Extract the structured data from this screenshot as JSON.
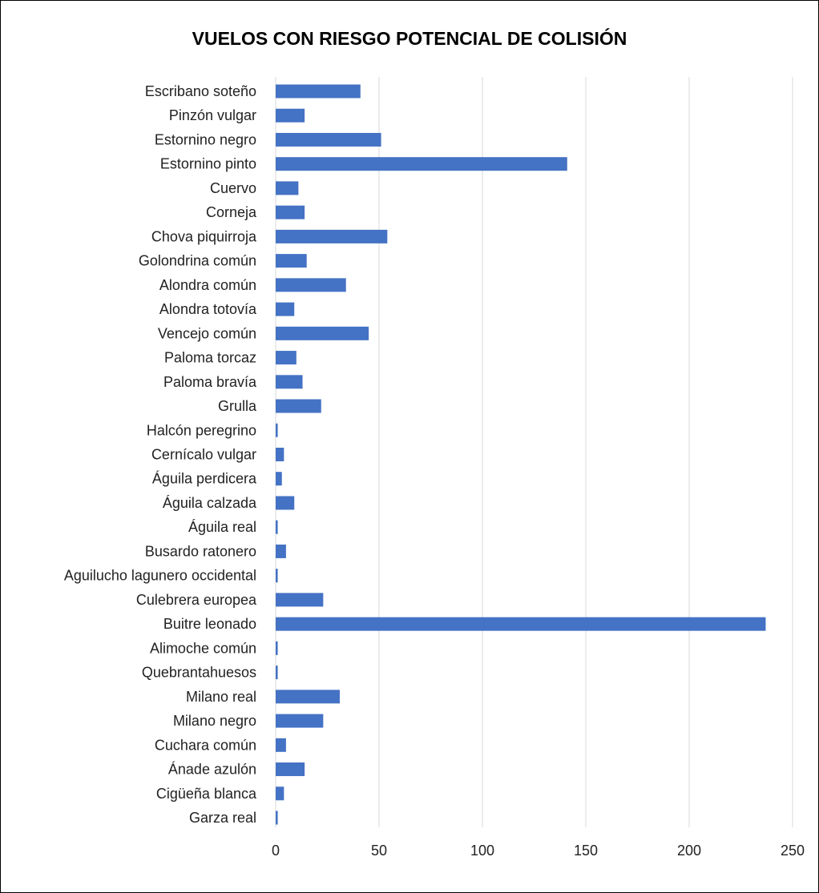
{
  "chart_data": {
    "type": "bar",
    "orientation": "horizontal",
    "title": "VUELOS CON RIESGO POTENCIAL DE COLISIÓN",
    "xlabel": "",
    "ylabel": "",
    "xlim": [
      0,
      250
    ],
    "xticks": [
      0,
      50,
      100,
      150,
      200,
      250
    ],
    "grid": true,
    "legend": "none",
    "bar_color": "#4472C4",
    "categories": [
      "Escribano soteño",
      "Pinzón  vulgar",
      "Estornino negro",
      "Estornino pinto",
      "Cuervo",
      "Corneja",
      "Chova piquirroja",
      "Golondrina común",
      "Alondra común",
      "Alondra totovía",
      "Vencejo común",
      "Paloma torcaz",
      "Paloma bravía",
      "Grulla",
      "Halcón peregrino",
      "Cernícalo vulgar",
      "Águila perdicera",
      "Águila calzada ",
      "Águila real",
      "Busardo ratonero",
      "Aguilucho lagunero occidental",
      "Culebrera europea",
      "Buitre leonado",
      "Alimoche común",
      "Quebrantahuesos",
      "Milano real",
      "Milano negro",
      "Cuchara común",
      "Ánade azulón",
      "Cigüeña blanca",
      "Garza real"
    ],
    "values": [
      41,
      14,
      51,
      141,
      11,
      14,
      54,
      15,
      34,
      9,
      45,
      10,
      13,
      22,
      1,
      4,
      3,
      9,
      1,
      5,
      1,
      23,
      237,
      1,
      1,
      31,
      23,
      5,
      14,
      4,
      1
    ]
  }
}
